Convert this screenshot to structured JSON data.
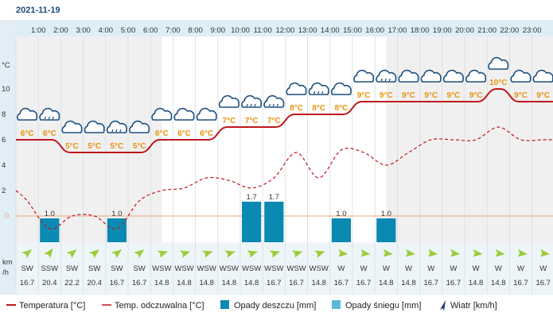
{
  "header": {
    "date": "2021-11-19"
  },
  "colors": {
    "temp_line": "#c0161b",
    "feels_line": "#c0161b",
    "rain_bar": "#0a8ab3",
    "snow_bar": "#5cb8d6",
    "night_band": "#f0f0f0",
    "day_band": "#ffffff",
    "hour_strip": "#ddeef7",
    "temp_label": "#e8930c",
    "wind_arrow": "#9ccc3a",
    "zero_line": "#f2a57a"
  },
  "chart_data": {
    "type": "line",
    "hours": [
      "1:00",
      "2:00",
      "3:00",
      "4:00",
      "5:00",
      "6:00",
      "7:00",
      "8:00",
      "9:00",
      "10:00",
      "11:00",
      "12:00",
      "13:00",
      "14:00",
      "15:00",
      "16:00",
      "17:00",
      "18:00",
      "19:00",
      "20:00",
      "21:00",
      "22:00",
      "23:00"
    ],
    "y_unit": "°C",
    "y_ticks": [
      "10",
      "8",
      "6",
      "4",
      "2",
      "0"
    ],
    "ylim": [
      -2,
      12
    ],
    "temp_labels": [
      "6°C",
      "6°C",
      "5°C",
      "5°C",
      "5°C",
      "5°C",
      "6°C",
      "6°C",
      "6°C",
      "7°C",
      "7°C",
      "7°C",
      "8°C",
      "8°C",
      "8°C",
      "9°C",
      "9°C",
      "9°C",
      "9°C",
      "9°C",
      "9°C",
      "10°C",
      "9°C",
      "9°C"
    ],
    "temperature": {
      "name": "Temperatura [°C]",
      "x": [
        0.5,
        1.5,
        2.5,
        3.5,
        4.5,
        5.5,
        6.5,
        7.5,
        8.5,
        9.5,
        10.5,
        11.5,
        12.5,
        13.5,
        14.5,
        15.5,
        16.5,
        17.5,
        18.5,
        19.5,
        20.5,
        21.5,
        22.5,
        23.5
      ],
      "values": [
        6.0,
        6.0,
        5.0,
        5.0,
        5.0,
        5.0,
        6.0,
        6.0,
        6.0,
        7.0,
        7.0,
        7.0,
        8.0,
        8.0,
        8.0,
        9.0,
        9.0,
        9.0,
        9.0,
        9.0,
        9.0,
        10.0,
        9.0,
        9.0
      ]
    },
    "feels_like": {
      "name": "Temp. odczuwalna [°C]",
      "x": [
        0,
        0.5,
        1.5,
        2.5,
        3.5,
        4.5,
        5.5,
        6.5,
        7.5,
        8.5,
        9.5,
        10.5,
        11.5,
        12.5,
        13.5,
        14.5,
        15.5,
        16.5,
        17.5,
        18.5,
        19.5,
        20.5,
        21.5,
        22.5,
        23.5,
        24.6
      ],
      "values": [
        2.0,
        1.2,
        -1.0,
        0.0,
        0.0,
        -1.0,
        1.2,
        2.0,
        2.2,
        3.0,
        2.8,
        2.2,
        3.0,
        5.0,
        3.0,
        5.2,
        5.0,
        4.0,
        5.0,
        6.0,
        6.0,
        6.0,
        7.0,
        6.0,
        6.0,
        6.0
      ]
    },
    "rain": {
      "name": "Opady deszczu [mm]",
      "x": [
        1.5,
        4.5,
        10.5,
        11.5,
        14.5,
        16.5
      ],
      "values": [
        1.0,
        1.0,
        1.7,
        1.7,
        1.0,
        1.0
      ],
      "labels": [
        "1.0",
        "1.0",
        "1.7",
        "1.7",
        "1.0",
        "1.0"
      ]
    },
    "snow": {
      "name": "Opady śniegu [mm]",
      "values": []
    },
    "weather_icons": [
      "cloud",
      "rain-cloud",
      "cloud",
      "cloud",
      "rain-cloud",
      "cloud",
      "cloud",
      "cloud",
      "cloud",
      "cloud",
      "rain-cloud",
      "rain-cloud",
      "cloud",
      "rain-cloud",
      "cloud",
      "cloud",
      "rain-cloud",
      "cloud",
      "cloud",
      "cloud",
      "cloud",
      "cloud",
      "cloud",
      "cloud"
    ],
    "wind": {
      "name": "Wiatr [km/h]",
      "unit": "km/h",
      "directions": [
        "SW",
        "SSW",
        "SW",
        "SW",
        "SW",
        "SW",
        "WSW",
        "WSW",
        "WSW",
        "WSW",
        "WSW",
        "WSW",
        "WSW",
        "WSW",
        "W",
        "W",
        "W",
        "W",
        "W",
        "W",
        "W",
        "W",
        "W",
        "W"
      ],
      "speeds": [
        "16.7",
        "20.4",
        "22.2",
        "20.4",
        "16.7",
        "16.7",
        "14.8",
        "14.8",
        "14.8",
        "14.8",
        "14.8",
        "16.7",
        "16.7",
        "14.8",
        "16.7",
        "16.7",
        "14.8",
        "14.8",
        "16.7",
        "16.7",
        "14.8",
        "14.8",
        "16.7",
        "16.7"
      ],
      "arrow_rotation_deg": [
        225,
        210,
        225,
        225,
        225,
        225,
        247,
        247,
        247,
        247,
        247,
        247,
        247,
        247,
        270,
        270,
        270,
        270,
        270,
        270,
        270,
        270,
        270,
        270
      ]
    },
    "night_hours": [
      [
        0,
        6.5
      ],
      [
        16.5,
        24.6
      ]
    ],
    "legend_placement": "bottom"
  },
  "legend": {
    "temperature": "Temperatura [°C]",
    "feels_like": "Temp. odczuwalna [°C]",
    "rain": "Opady deszczu [mm]",
    "snow": "Opady śniegu [mm]",
    "wind": "Wiatr [km/h]"
  }
}
